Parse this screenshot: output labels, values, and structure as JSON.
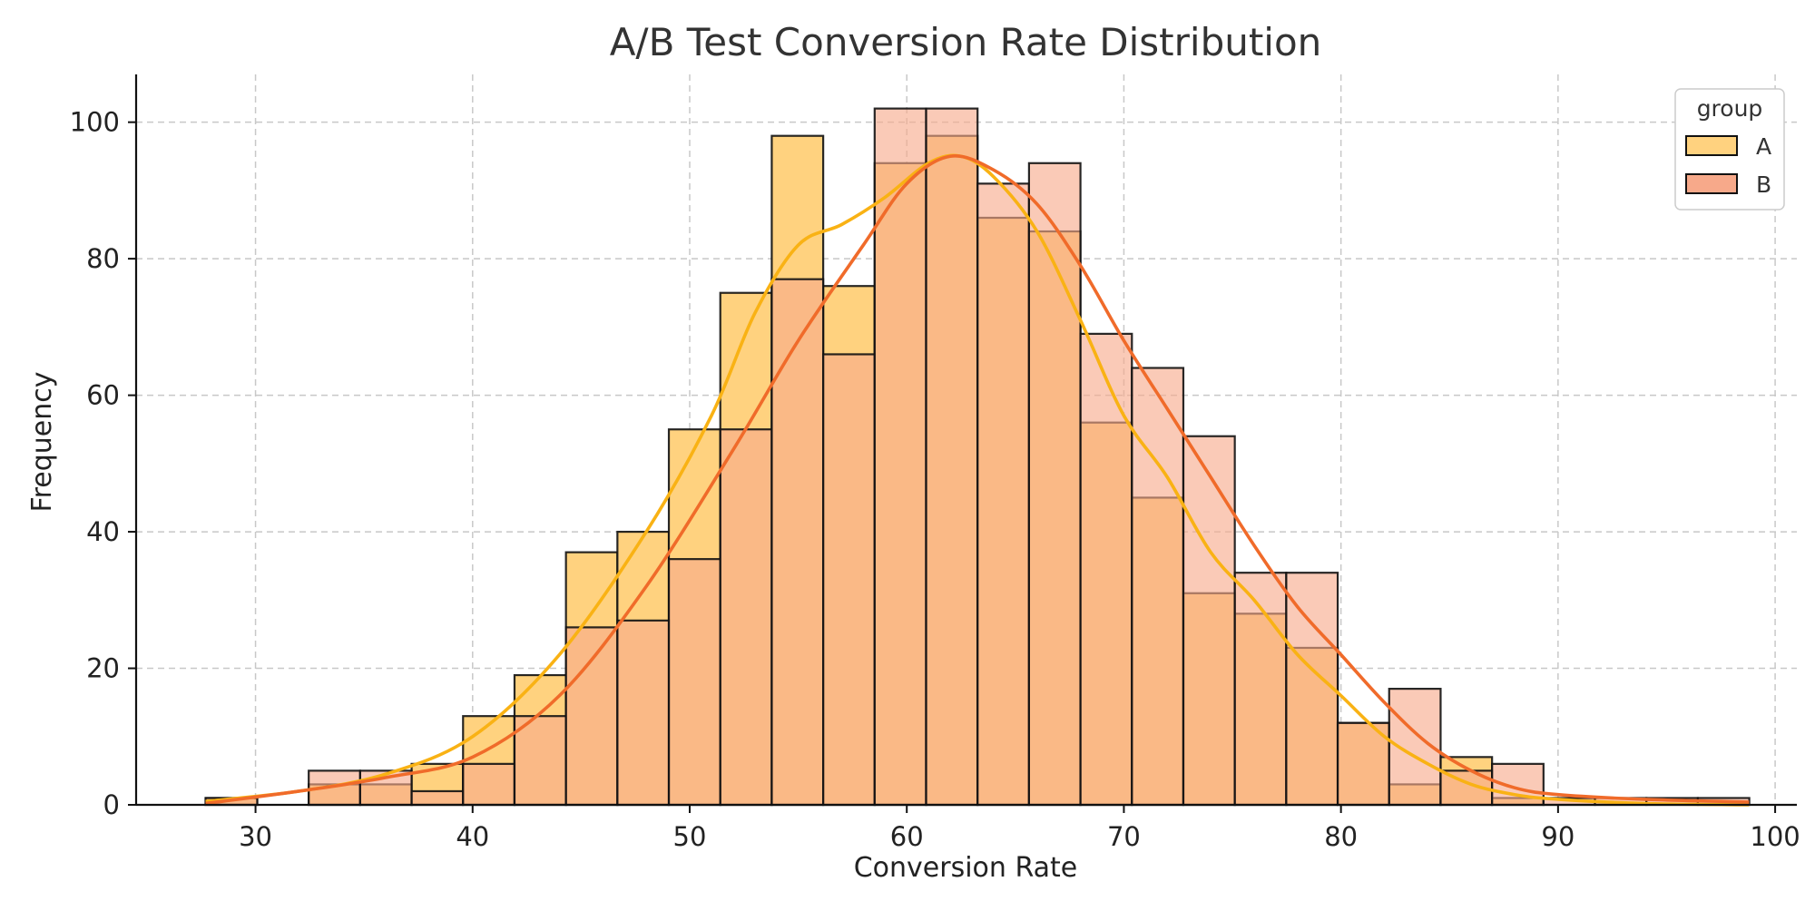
{
  "chart_data": {
    "type": "bar",
    "title": "A/B Test Conversion Rate Distribution",
    "xlabel": "Conversion Rate",
    "ylabel": "Frequency",
    "xlim": [
      24.5,
      101
    ],
    "ylim": [
      0,
      107
    ],
    "xticks": [
      30,
      40,
      50,
      60,
      70,
      80,
      90,
      100
    ],
    "yticks": [
      0,
      20,
      40,
      60,
      80,
      100
    ],
    "grid": true,
    "legend": {
      "title": "group",
      "placement": "top-right"
    },
    "bins": [
      [
        27.7,
        30.08
      ],
      [
        30.08,
        32.45
      ],
      [
        32.45,
        34.82
      ],
      [
        34.82,
        37.19
      ],
      [
        37.19,
        39.56
      ],
      [
        39.56,
        41.93
      ],
      [
        41.93,
        44.3
      ],
      [
        44.3,
        46.67
      ],
      [
        46.67,
        49.04
      ],
      [
        49.04,
        51.41
      ],
      [
        51.41,
        53.78
      ],
      [
        53.78,
        56.15
      ],
      [
        56.15,
        58.52
      ],
      [
        58.52,
        60.89
      ],
      [
        60.89,
        63.26
      ],
      [
        63.26,
        65.63
      ],
      [
        65.63,
        68.0
      ],
      [
        68.0,
        70.37
      ],
      [
        70.37,
        72.74
      ],
      [
        72.74,
        75.11
      ],
      [
        75.11,
        77.48
      ],
      [
        77.48,
        79.85
      ],
      [
        79.85,
        82.22
      ],
      [
        82.22,
        84.59
      ],
      [
        84.59,
        86.96
      ],
      [
        86.96,
        89.33
      ],
      [
        89.33,
        91.7
      ],
      [
        91.7,
        94.07
      ],
      [
        94.07,
        96.44
      ],
      [
        96.44,
        98.81
      ]
    ],
    "series": [
      {
        "name": "A",
        "color": "#FFD27F",
        "kde_color": "#F9B214",
        "values": [
          1,
          0,
          3,
          3,
          6,
          13,
          19,
          37,
          40,
          55,
          75,
          98,
          76,
          94,
          98,
          86,
          84,
          56,
          45,
          31,
          28,
          23,
          12,
          3,
          7,
          1,
          0,
          0,
          0,
          0
        ],
        "kde": [
          [
            27.7,
            0.5
          ],
          [
            32,
            2
          ],
          [
            36,
            4.5
          ],
          [
            40,
            10
          ],
          [
            44,
            22
          ],
          [
            48,
            40
          ],
          [
            51,
            57
          ],
          [
            53,
            72
          ],
          [
            55,
            82
          ],
          [
            57,
            85
          ],
          [
            59,
            89
          ],
          [
            61,
            94
          ],
          [
            62.5,
            95
          ],
          [
            64,
            92
          ],
          [
            66,
            84
          ],
          [
            68,
            71
          ],
          [
            70,
            57
          ],
          [
            72,
            48
          ],
          [
            74,
            37
          ],
          [
            76,
            30
          ],
          [
            78,
            22
          ],
          [
            80,
            16
          ],
          [
            82,
            10
          ],
          [
            84,
            6
          ],
          [
            86,
            3
          ],
          [
            88,
            1.5
          ],
          [
            90,
            0.8
          ],
          [
            94,
            0.2
          ],
          [
            98.8,
            0
          ]
        ]
      },
      {
        "name": "B",
        "color": "#F7A98A",
        "kde_color": "#F06B2A",
        "values": [
          1,
          0,
          5,
          5,
          2,
          6,
          13,
          26,
          27,
          36,
          55,
          77,
          66,
          102,
          102,
          91,
          94,
          69,
          64,
          54,
          34,
          34,
          12,
          17,
          5,
          6,
          1,
          1,
          1,
          1
        ],
        "kde": [
          [
            27.7,
            0.2
          ],
          [
            32,
            2
          ],
          [
            36,
            4
          ],
          [
            40,
            7
          ],
          [
            44,
            16
          ],
          [
            48,
            32
          ],
          [
            52,
            52
          ],
          [
            55,
            68
          ],
          [
            58,
            82
          ],
          [
            60,
            91
          ],
          [
            62,
            95
          ],
          [
            64,
            93
          ],
          [
            66,
            88
          ],
          [
            68,
            79
          ],
          [
            70,
            68
          ],
          [
            72,
            58
          ],
          [
            74,
            48
          ],
          [
            76,
            38
          ],
          [
            78,
            29
          ],
          [
            80,
            22
          ],
          [
            82,
            15
          ],
          [
            84,
            9
          ],
          [
            86,
            5
          ],
          [
            88,
            2.5
          ],
          [
            90,
            1.5
          ],
          [
            94,
            0.8
          ],
          [
            98.8,
            0.4
          ]
        ]
      }
    ]
  }
}
